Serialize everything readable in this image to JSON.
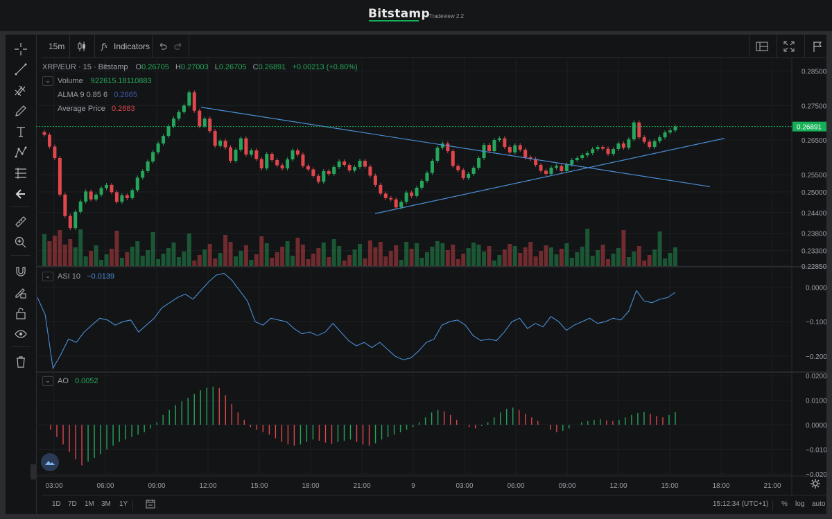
{
  "header": {
    "brand": "Bitstamp",
    "subtitle": "Tradeview 2.2"
  },
  "toolbar": {
    "interval": "15m",
    "indicators_label": "Indicators"
  },
  "main_pane": {
    "symbol": "XRP/EUR · 15 · Bitstamp",
    "open_label": "O",
    "open": "0.26705",
    "high_label": "H",
    "high": "0.27003",
    "low_label": "L",
    "low": "0.26705",
    "close_label": "C",
    "close": "0.26891",
    "change": "+0.00213 (+0.80%)",
    "volume_label": "Volume",
    "volume_value": "922615.18110883",
    "alma_label": "ALMA 9 0.85 6",
    "alma_value": "0.2665",
    "avg_label": "Average Price",
    "avg_value": "0.2683",
    "price_ticks": [
      "0.28500",
      "0.27500",
      "0.26500",
      "0.25500",
      "0.25000",
      "0.24400",
      "0.23800",
      "0.23300",
      "0.22850"
    ],
    "current_price": "0.26891"
  },
  "asi_pane": {
    "label": "ASI 10",
    "value": "−0.0139",
    "ticks": [
      "0.0000",
      "−0.1000",
      "−0.2000"
    ]
  },
  "ao_pane": {
    "label": "AO",
    "value": "0.0052",
    "ticks": [
      "0.0200",
      "0.0100",
      "0.0000",
      "−0.0100",
      "−0.0200"
    ]
  },
  "time_axis": [
    "03:00",
    "06:00",
    "09:00",
    "12:00",
    "15:00",
    "18:00",
    "21:00",
    "9",
    "03:00",
    "06:00",
    "09:00",
    "12:00",
    "15:00",
    "18:00",
    "21:00"
  ],
  "bottom_bar": {
    "ranges": [
      "1D",
      "7D",
      "1M",
      "3M",
      "1Y"
    ],
    "clock": "15:12:34 (UTC+1)",
    "percent": "%",
    "log": "log",
    "auto": "auto"
  },
  "colors": {
    "up": "#26a65b",
    "down": "#e0474c",
    "line": "#4a8fd6",
    "price_line": "#16b157",
    "background": "#131416"
  },
  "chart_data": [
    {
      "type": "line",
      "title": "XRP/EUR · 15 · Bitstamp",
      "y_range": [
        0.2285,
        0.2875
      ],
      "trendlines": [
        {
          "from": [
            "11:50",
            0.2745
          ],
          "to": [
            "Day 9 18:00",
            0.2515
          ]
        },
        {
          "from": [
            "22:30",
            0.2437
          ],
          "to": [
            "Day 9 18:30",
            0.2655
          ]
        }
      ],
      "current_price": 0.26891,
      "close_values": [
        0.2665,
        0.2631,
        0.2598,
        0.2492,
        0.243,
        0.2395,
        0.2442,
        0.2472,
        0.2501,
        0.2478,
        0.2492,
        0.2511,
        0.252,
        0.2499,
        0.2471,
        0.249,
        0.2482,
        0.2505,
        0.2541,
        0.256,
        0.2588,
        0.2615,
        0.264,
        0.2662,
        0.269,
        0.2712,
        0.2731,
        0.275,
        0.2788,
        0.2735,
        0.269,
        0.2712,
        0.2676,
        0.2633,
        0.2648,
        0.2629,
        0.259,
        0.2622,
        0.2655,
        0.2608,
        0.262,
        0.2595,
        0.2568,
        0.261,
        0.2592,
        0.2577,
        0.2568,
        0.2594,
        0.262,
        0.2608,
        0.2575,
        0.2565,
        0.2546,
        0.2529,
        0.256,
        0.2552,
        0.2572,
        0.2588,
        0.2578,
        0.2562,
        0.2572,
        0.259,
        0.2573,
        0.2547,
        0.252,
        0.2495,
        0.2482,
        0.2478,
        0.2455,
        0.2471,
        0.2498,
        0.2488,
        0.2512,
        0.2532,
        0.2555,
        0.259,
        0.2628,
        0.264,
        0.2618,
        0.2575,
        0.2563,
        0.254,
        0.2552,
        0.257,
        0.2598,
        0.2636,
        0.2618,
        0.265,
        0.2655,
        0.263,
        0.2614,
        0.2635,
        0.2622,
        0.26,
        0.2595,
        0.2578,
        0.2561,
        0.2552,
        0.257,
        0.2575,
        0.256,
        0.2579,
        0.2592,
        0.2598,
        0.2606,
        0.2612,
        0.2624,
        0.263,
        0.2625,
        0.261,
        0.2624,
        0.264,
        0.2628,
        0.2652,
        0.2701,
        0.2658,
        0.2645,
        0.263,
        0.2647,
        0.2658,
        0.2672,
        0.2678,
        0.2689
      ]
    },
    {
      "type": "line",
      "title": "ASI 10",
      "y_range": [
        -0.24,
        0.045
      ],
      "values": [
        -0.03,
        -0.08,
        -0.235,
        -0.195,
        -0.15,
        -0.16,
        -0.13,
        -0.11,
        -0.09,
        -0.095,
        -0.11,
        -0.1,
        -0.095,
        -0.13,
        -0.11,
        -0.09,
        -0.06,
        -0.045,
        -0.03,
        -0.02,
        -0.035,
        -0.01,
        0.015,
        0.035,
        0.04,
        0.02,
        -0.01,
        -0.04,
        -0.1,
        -0.11,
        -0.09,
        -0.095,
        -0.1,
        -0.12,
        -0.135,
        -0.13,
        -0.14,
        -0.13,
        -0.105,
        -0.13,
        -0.155,
        -0.17,
        -0.16,
        -0.175,
        -0.16,
        -0.18,
        -0.2,
        -0.21,
        -0.205,
        -0.185,
        -0.16,
        -0.15,
        -0.11,
        -0.1,
        -0.095,
        -0.11,
        -0.14,
        -0.155,
        -0.15,
        -0.155,
        -0.13,
        -0.1,
        -0.09,
        -0.12,
        -0.105,
        -0.115,
        -0.085,
        -0.1,
        -0.125,
        -0.11,
        -0.1,
        -0.09,
        -0.105,
        -0.1,
        -0.09,
        -0.095,
        -0.07,
        -0.01,
        -0.04,
        -0.045,
        -0.035,
        -0.03,
        -0.015
      ]
    },
    {
      "type": "bar",
      "title": "AO",
      "y_range": [
        -0.02,
        0.02
      ],
      "values": [
        0.0,
        -0.002,
        -0.005,
        -0.008,
        -0.011,
        -0.014,
        -0.0165,
        -0.015,
        -0.0135,
        -0.012,
        -0.01,
        -0.0085,
        -0.007,
        -0.006,
        -0.005,
        -0.004,
        -0.003,
        -0.0015,
        0.001,
        0.004,
        0.006,
        0.008,
        0.0095,
        0.011,
        0.0125,
        0.014,
        0.015,
        0.0155,
        0.015,
        0.012,
        0.0085,
        0.005,
        0.002,
        -0.001,
        -0.002,
        -0.003,
        -0.004,
        -0.0055,
        -0.007,
        -0.008,
        -0.0085,
        -0.008,
        -0.007,
        -0.006,
        -0.0065,
        -0.0072,
        -0.0078,
        -0.007,
        -0.0065,
        -0.006,
        -0.007,
        -0.008,
        -0.0085,
        -0.0075,
        -0.006,
        -0.005,
        -0.004,
        -0.003,
        -0.002,
        -0.001,
        0.001,
        0.003,
        0.005,
        0.006,
        0.0055,
        0.004,
        0.002,
        0.0,
        -0.001,
        -0.0015,
        -0.0005,
        0.001,
        0.003,
        0.005,
        0.0065,
        0.007,
        0.006,
        0.0045,
        0.003,
        0.0015,
        0.0,
        -0.002,
        -0.003,
        -0.0025,
        -0.0015,
        0.0,
        0.001,
        0.0015,
        0.002,
        0.0022,
        0.0018,
        0.0015,
        0.002,
        0.003,
        0.004,
        0.0048,
        0.0052,
        0.0045,
        0.0035,
        0.003,
        0.004,
        0.0052
      ]
    }
  ]
}
